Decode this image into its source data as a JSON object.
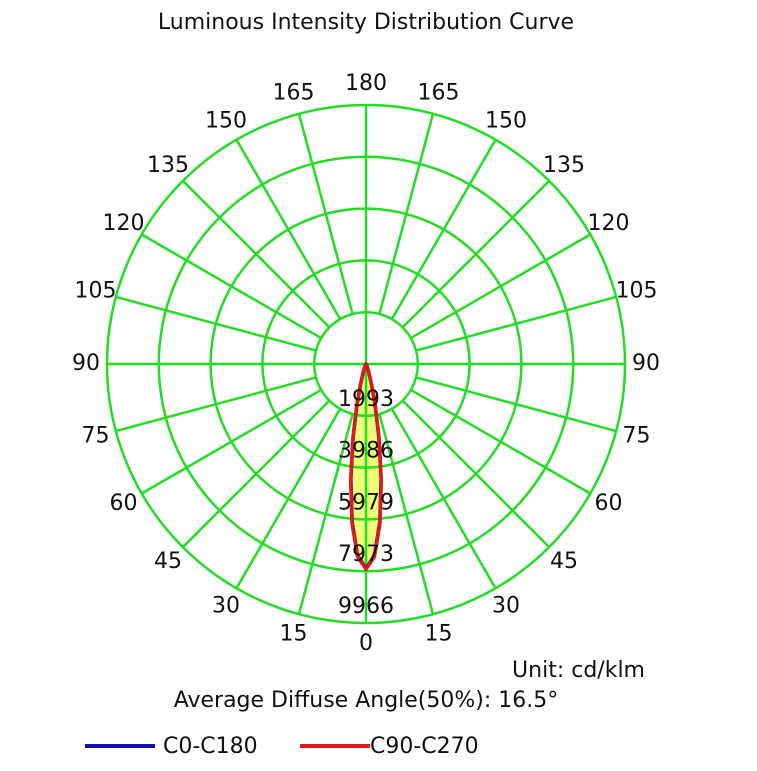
{
  "chart_data": {
    "type": "polar",
    "title": "Luminous Intensity Distribution Curve",
    "unit_label": "Unit: cd/klm",
    "annotation": "Average Diffuse Angle(50%): 16.5°",
    "symmetric": true,
    "grid": true,
    "grid_color": "#22dd22",
    "fill_color": "#eeff77",
    "angles": [
      0,
      2.5,
      5,
      7.5,
      10,
      12.5,
      15,
      20,
      25,
      30,
      45,
      60,
      90
    ],
    "series": [
      {
        "name": "C0-C180",
        "color": "#1010b0",
        "values": [
          7870,
          7380,
          6100,
          4440,
          2840,
          1600,
          800,
          250,
          90,
          40,
          10,
          0,
          0
        ]
      },
      {
        "name": "C90-C270",
        "color": "#e01818",
        "values": [
          7900,
          7420,
          6160,
          4520,
          2920,
          1680,
          860,
          280,
          100,
          45,
          12,
          0,
          0
        ]
      }
    ],
    "rlim": [
      0,
      9966
    ],
    "rticks": [
      1993,
      3986,
      5979,
      7973,
      9966
    ],
    "angle_ticks": [
      0,
      15,
      30,
      45,
      60,
      75,
      90,
      105,
      120,
      135,
      150,
      165,
      180
    ]
  }
}
